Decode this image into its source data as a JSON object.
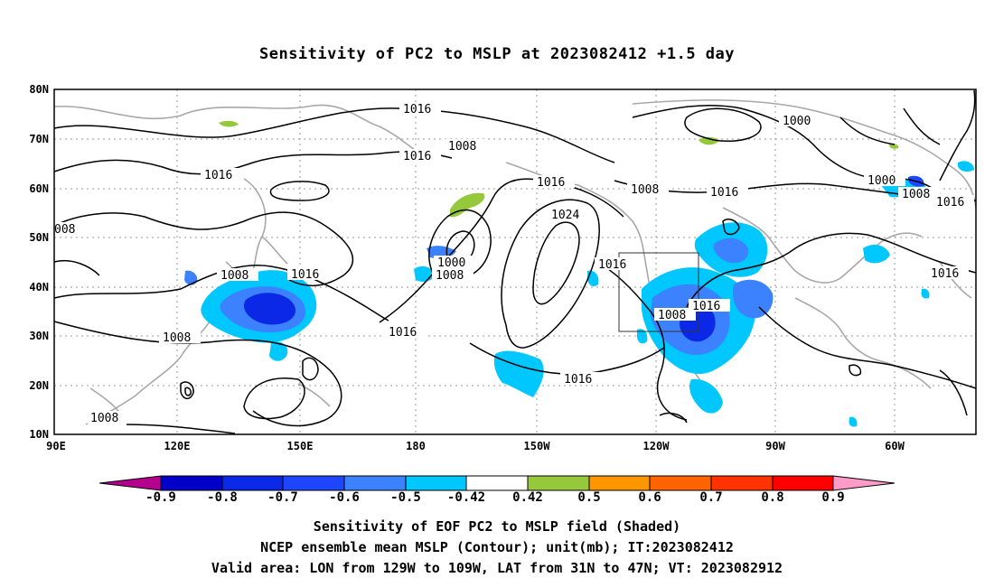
{
  "title": "Sensitivity of PC2 to MSLP at 2023082412 +1.5 day",
  "y_ticks": [
    "80N",
    "70N",
    "60N",
    "50N",
    "40N",
    "30N",
    "20N",
    "10N"
  ],
  "x_ticks": [
    "90E",
    "120E",
    "150E",
    "180",
    "150W",
    "120W",
    "90W",
    "60W"
  ],
  "contour_labels": [
    "1016",
    "1008",
    "1016",
    "1016",
    "1000",
    "1008",
    "1008",
    "1016",
    "1024",
    "1016",
    "1008",
    "1016",
    "1000",
    "1000",
    "1008",
    "1016",
    "1016",
    "1016",
    "1008",
    "1008",
    "1016",
    "1016"
  ],
  "colorbar": {
    "labels": [
      "-0.9",
      "-0.8",
      "-0.7",
      "-0.6",
      "-0.5",
      "-0.42",
      "0.42",
      "0.5",
      "0.6",
      "0.7",
      "0.8",
      "0.9"
    ],
    "colors": [
      "#b4008c",
      "#0000c8",
      "#0a28e6",
      "#1e46ff",
      "#3c82ff",
      "#00c8ff",
      "#ffffff",
      "#96c83c",
      "#ff9600",
      "#ff6400",
      "#ff3200",
      "#ff0000",
      "#ff9bc8"
    ]
  },
  "captions": [
    "Sensitivity of EOF PC2 to MSLP field (Shaded)",
    "NCEP ensemble mean MSLP (Contour); unit(mb); IT:2023082412",
    "Valid area: LON from 129W to 109W, LAT from 31N to 47N; VT: 2023082912"
  ]
}
